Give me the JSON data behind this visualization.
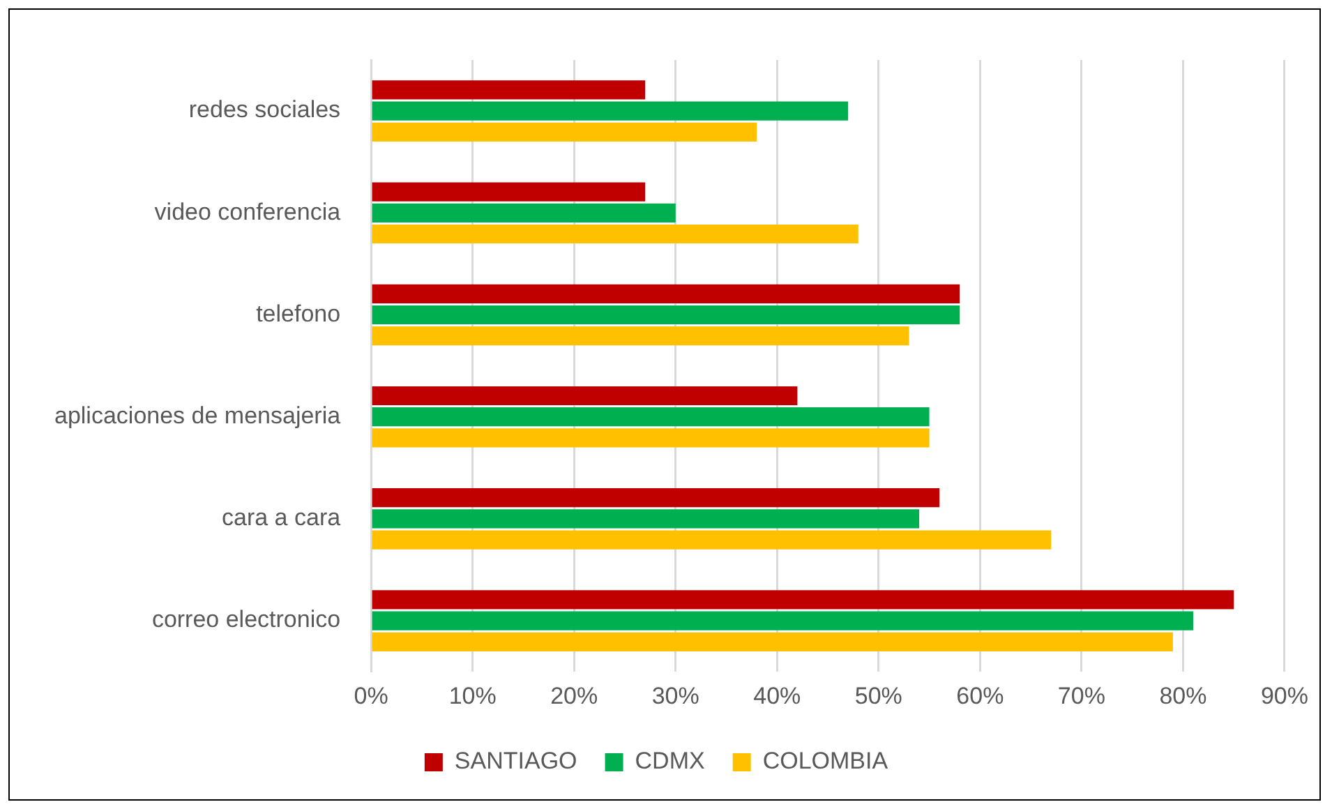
{
  "chart_data": {
    "type": "bar",
    "orientation": "horizontal",
    "categories": [
      "redes sociales",
      "video conferencia",
      "telefono",
      "aplicaciones de mensajeria",
      "cara a cara",
      "correo electronico"
    ],
    "series": [
      {
        "name": "SANTIAGO",
        "color": "#c00000",
        "values": [
          27,
          27,
          58,
          42,
          56,
          85
        ]
      },
      {
        "name": "CDMX",
        "color": "#00b050",
        "values": [
          47,
          30,
          58,
          55,
          54,
          81
        ]
      },
      {
        "name": "COLOMBIA",
        "color": "#ffc000",
        "values": [
          38,
          48,
          53,
          55,
          67,
          79
        ]
      }
    ],
    "xlim": [
      0,
      90
    ],
    "xticks": [
      {
        "value": 0,
        "label": "0%"
      },
      {
        "value": 10,
        "label": "10%"
      },
      {
        "value": 20,
        "label": "20%"
      },
      {
        "value": 30,
        "label": "30%"
      },
      {
        "value": 40,
        "label": "40%"
      },
      {
        "value": 50,
        "label": "50%"
      },
      {
        "value": 60,
        "label": "60%"
      },
      {
        "value": 70,
        "label": "70%"
      },
      {
        "value": 80,
        "label": "80%"
      },
      {
        "value": 90,
        "label": "90%"
      }
    ],
    "grid": "x",
    "legend": "bottom"
  }
}
